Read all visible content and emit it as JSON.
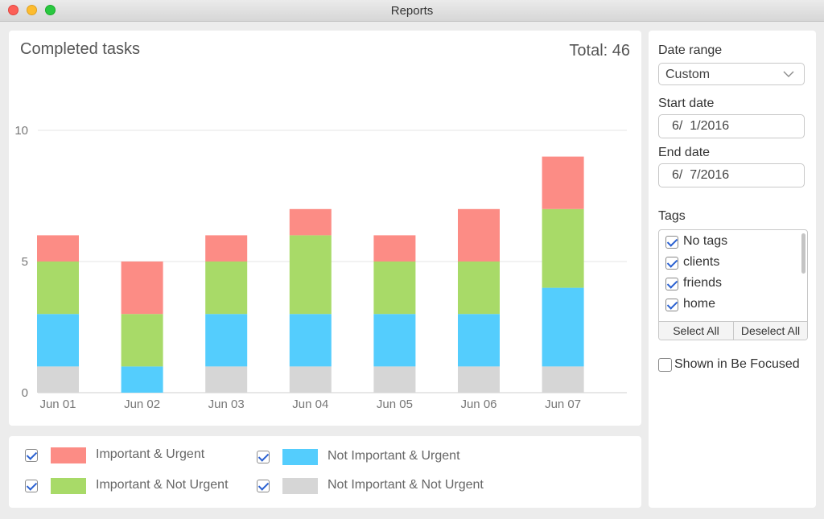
{
  "window": {
    "title": "Reports"
  },
  "chart_header": {
    "title": "Completed tasks",
    "total": "Total: 46"
  },
  "chart_data": {
    "type": "bar",
    "stacked": true,
    "categories": [
      "Jun 01",
      "Jun 02",
      "Jun 03",
      "Jun 04",
      "Jun 05",
      "Jun 06",
      "Jun 07"
    ],
    "series": [
      {
        "name": "Not Important & Not Urgent",
        "color": "#d6d6d6",
        "values": [
          1,
          0,
          1,
          1,
          1,
          1,
          1
        ]
      },
      {
        "name": "Not Important & Urgent",
        "color": "#54cdfd",
        "values": [
          2,
          1,
          2,
          2,
          2,
          2,
          3
        ]
      },
      {
        "name": "Important & Not Urgent",
        "color": "#a8da68",
        "values": [
          2,
          2,
          2,
          3,
          2,
          2,
          3
        ]
      },
      {
        "name": "Important & Urgent",
        "color": "#fc8c85",
        "values": [
          1,
          2,
          1,
          1,
          1,
          2,
          2
        ]
      }
    ],
    "ylim": [
      0,
      10
    ],
    "yticks": [
      "0",
      "5",
      "10"
    ],
    "grid": true
  },
  "legend": [
    {
      "label": "Important & Urgent",
      "color": "#fc8c85",
      "checked": true
    },
    {
      "label": "Not Important & Urgent",
      "color": "#54cdfd",
      "checked": true
    },
    {
      "label": "Important & Not Urgent",
      "color": "#a8da68",
      "checked": true
    },
    {
      "label": "Not Important & Not Urgent",
      "color": "#d6d6d6",
      "checked": true
    }
  ],
  "sidebar": {
    "date_range_label": "Date range",
    "date_range_value": "Custom",
    "start_date_label": "Start date",
    "start_date_value": "6/  1/2016",
    "end_date_label": "End date",
    "end_date_value": "6/  7/2016",
    "tags_label": "Tags",
    "tags": [
      {
        "label": "No tags",
        "checked": true
      },
      {
        "label": "clients",
        "checked": true
      },
      {
        "label": "friends",
        "checked": true
      },
      {
        "label": "home",
        "checked": true
      }
    ],
    "select_all_label": "Select All",
    "deselect_all_label": "Deselect All",
    "be_focused_label": "Shown in Be Focused",
    "be_focused_checked": false
  }
}
